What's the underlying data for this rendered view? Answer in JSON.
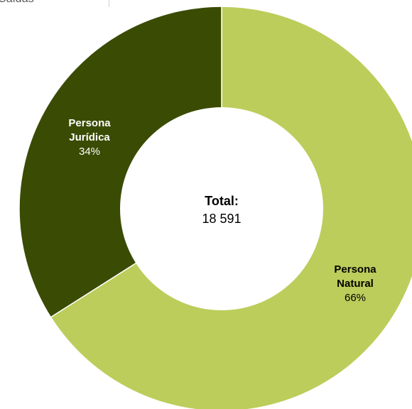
{
  "header": {
    "partial_label": "Caldas"
  },
  "chart_data": {
    "type": "pie",
    "variant": "donut",
    "title": "",
    "center": {
      "title": "Total:",
      "value": "18 591"
    },
    "slices": [
      {
        "label_line1": "Persona",
        "label_line2": "Natural",
        "percent_label": "66%",
        "value": 66,
        "color": "#bccd5b"
      },
      {
        "label_line1": "Persona",
        "label_line2": "Jurídica",
        "percent_label": "34%",
        "value": 34,
        "color": "#3a4b03"
      }
    ]
  }
}
